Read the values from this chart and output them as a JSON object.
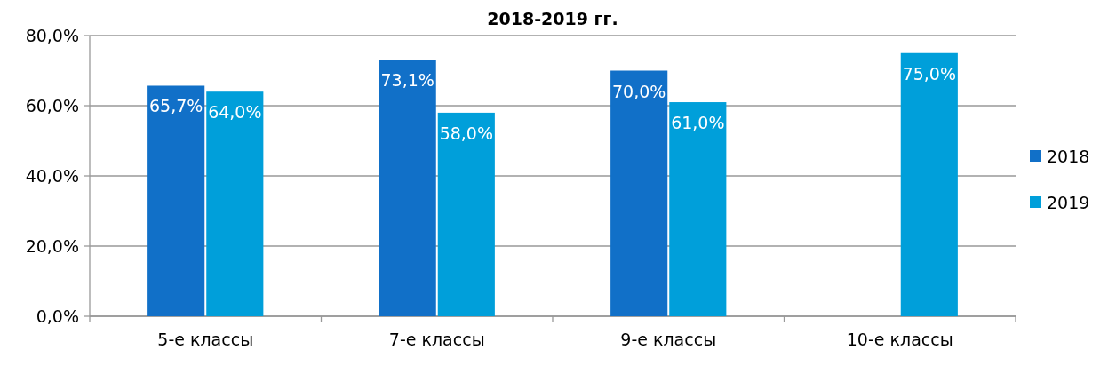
{
  "chart_data": {
    "type": "bar",
    "title": "2018-2019 гг.",
    "categories": [
      "5-е классы",
      "7-е классы",
      "9-е классы",
      "10-е классы"
    ],
    "series": [
      {
        "name": "2018",
        "color": "#1170c8",
        "values": [
          65.7,
          73.1,
          70.0,
          null
        ],
        "value_labels": [
          "65,7%",
          "73,1%",
          "70,0%",
          null
        ]
      },
      {
        "name": "2019",
        "color": "#009fda",
        "values": [
          64.0,
          58.0,
          61.0,
          75.0
        ],
        "value_labels": [
          "64,0%",
          "58,0%",
          "61,0%",
          "75,0%"
        ]
      }
    ],
    "ylim": [
      0,
      80
    ],
    "yticks": [
      {
        "value": 0,
        "label": "0,0%"
      },
      {
        "value": 20,
        "label": "20,0%"
      },
      {
        "value": 40,
        "label": "40,0%"
      },
      {
        "value": 60,
        "label": "60,0%"
      },
      {
        "value": 80,
        "label": "80,0%"
      }
    ],
    "grid": "y",
    "legend": "right"
  }
}
